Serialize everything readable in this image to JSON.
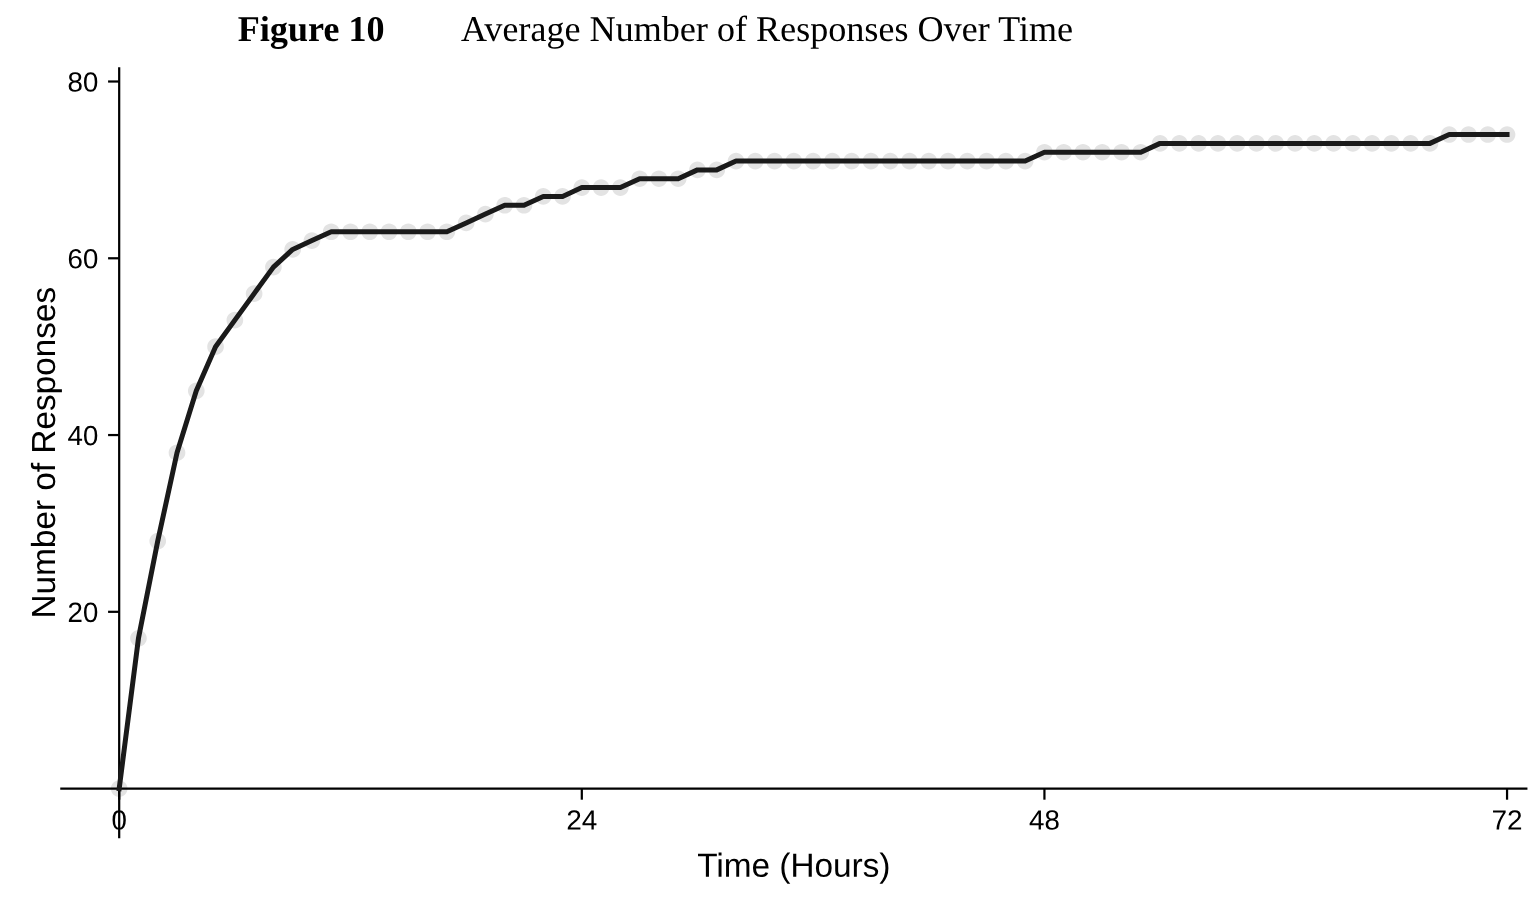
{
  "chart_data": {
    "type": "line",
    "title": "Average Number of Responses Over Time",
    "annotations": [
      "Figure 10"
    ],
    "xlabel": "Time (Hours)",
    "ylabel": "Number of Responses",
    "x": [
      0,
      1,
      2,
      3,
      4,
      5,
      6,
      7,
      8,
      9,
      10,
      11,
      12,
      13,
      14,
      15,
      16,
      17,
      18,
      19,
      20,
      21,
      22,
      23,
      24,
      25,
      26,
      27,
      28,
      29,
      30,
      31,
      32,
      33,
      34,
      35,
      36,
      37,
      38,
      39,
      40,
      41,
      42,
      43,
      44,
      45,
      46,
      47,
      48,
      49,
      50,
      51,
      52,
      53,
      54,
      55,
      56,
      57,
      58,
      59,
      60,
      61,
      62,
      63,
      64,
      65,
      66,
      67,
      68,
      69,
      70,
      71,
      72
    ],
    "series": [
      {
        "color": "#1a1a1a",
        "values": [
          0,
          17,
          28,
          38,
          45,
          50,
          53,
          56,
          59,
          61,
          62,
          63,
          63,
          63,
          63,
          63,
          63,
          63,
          64,
          65,
          66,
          66,
          67,
          67,
          68,
          68,
          68,
          69,
          69,
          69,
          70,
          70,
          71,
          71,
          71,
          71,
          71,
          71,
          71,
          71,
          71,
          71,
          71,
          71,
          71,
          71,
          71,
          71,
          72,
          72,
          72,
          72,
          72,
          72,
          73,
          73,
          73,
          73,
          73,
          73,
          73,
          73,
          73,
          73,
          73,
          73,
          73,
          73,
          73,
          74,
          74,
          74,
          74
        ]
      }
    ],
    "xlim": [
      -3,
      73
    ],
    "ylim": [
      -5.5,
      81.5
    ],
    "xticks": [
      0,
      24,
      48,
      72
    ],
    "yticks": [
      20,
      40,
      60,
      80
    ],
    "marker": "circle",
    "line_style": "solid"
  }
}
